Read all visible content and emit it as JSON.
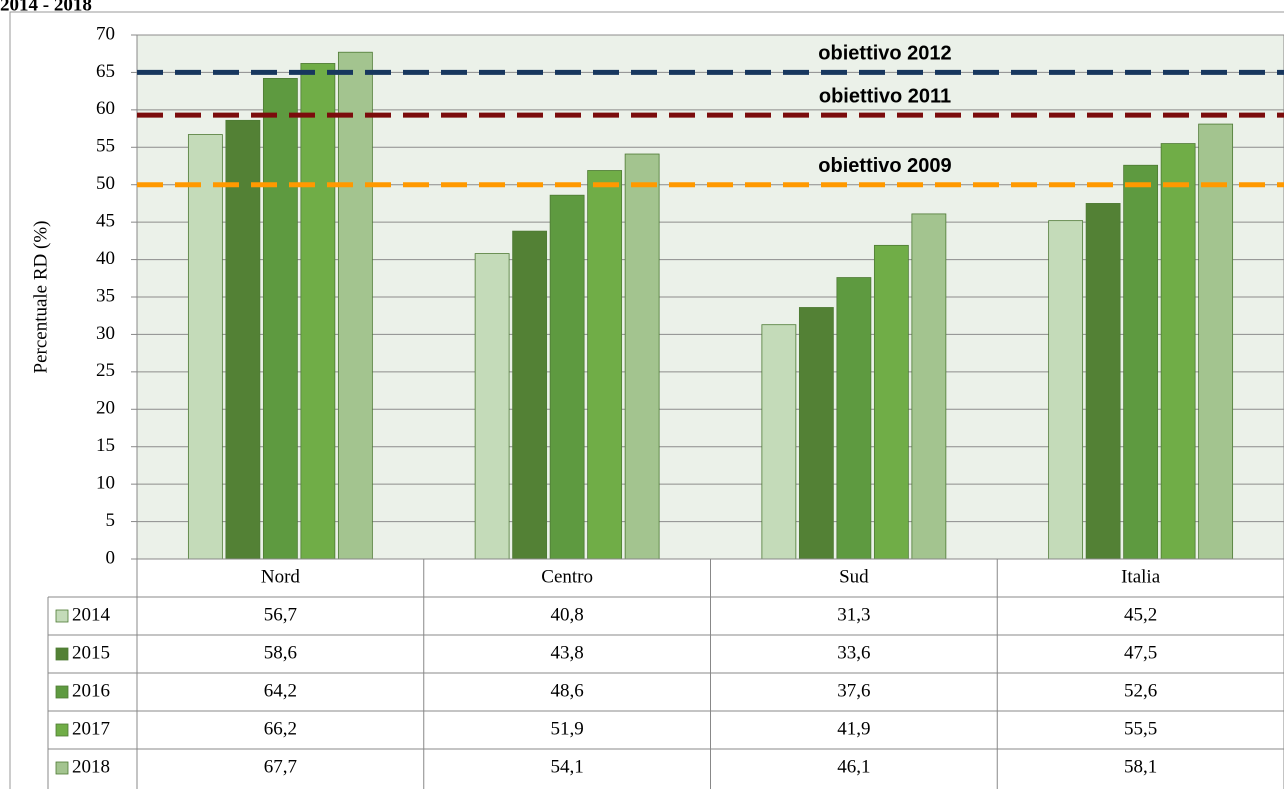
{
  "chart_data": {
    "type": "bar",
    "title": "2014 - 2018",
    "y_label": "Percentuale RD (%)",
    "categories": [
      "Nord",
      "Centro",
      "Sud",
      "Italia"
    ],
    "series": [
      {
        "name": "2014",
        "color": "#c4dbb9",
        "values": [
          56.7,
          40.8,
          31.3,
          45.2
        ],
        "value_labels": [
          "56,7",
          "40,8",
          "31,3",
          "45,2"
        ]
      },
      {
        "name": "2015",
        "color": "#538135",
        "values": [
          58.6,
          43.8,
          33.6,
          47.5
        ],
        "value_labels": [
          "58,6",
          "43,8",
          "33,6",
          "47,5"
        ]
      },
      {
        "name": "2016",
        "color": "#5e9a40",
        "values": [
          64.2,
          48.6,
          37.6,
          52.6
        ],
        "value_labels": [
          "64,2",
          "48,6",
          "37,6",
          "52,6"
        ]
      },
      {
        "name": "2017",
        "color": "#70ad47",
        "values": [
          66.2,
          51.9,
          41.9,
          55.5
        ],
        "value_labels": [
          "66,2",
          "51,9",
          "41,9",
          "55,5"
        ]
      },
      {
        "name": "2018",
        "color": "#a3c48f",
        "values": [
          67.7,
          54.1,
          46.1,
          58.1
        ],
        "value_labels": [
          "67,7",
          "54,1",
          "46,1",
          "58,1"
        ]
      }
    ],
    "reference_lines": [
      {
        "label": "obiettivo 2012",
        "value": 65,
        "color": "#17375e"
      },
      {
        "label": "obiettivo 2011",
        "value": 59.3,
        "color": "#7b0c0c"
      },
      {
        "label": "obiettivo 2009",
        "value": 50,
        "color": "#ff9900",
        "label_color": "#ff0000"
      }
    ],
    "ylim": [
      0,
      70
    ],
    "yticks": [
      0,
      5,
      10,
      15,
      20,
      25,
      30,
      35,
      40,
      45,
      50,
      55,
      60,
      65,
      70
    ],
    "grid": true
  }
}
